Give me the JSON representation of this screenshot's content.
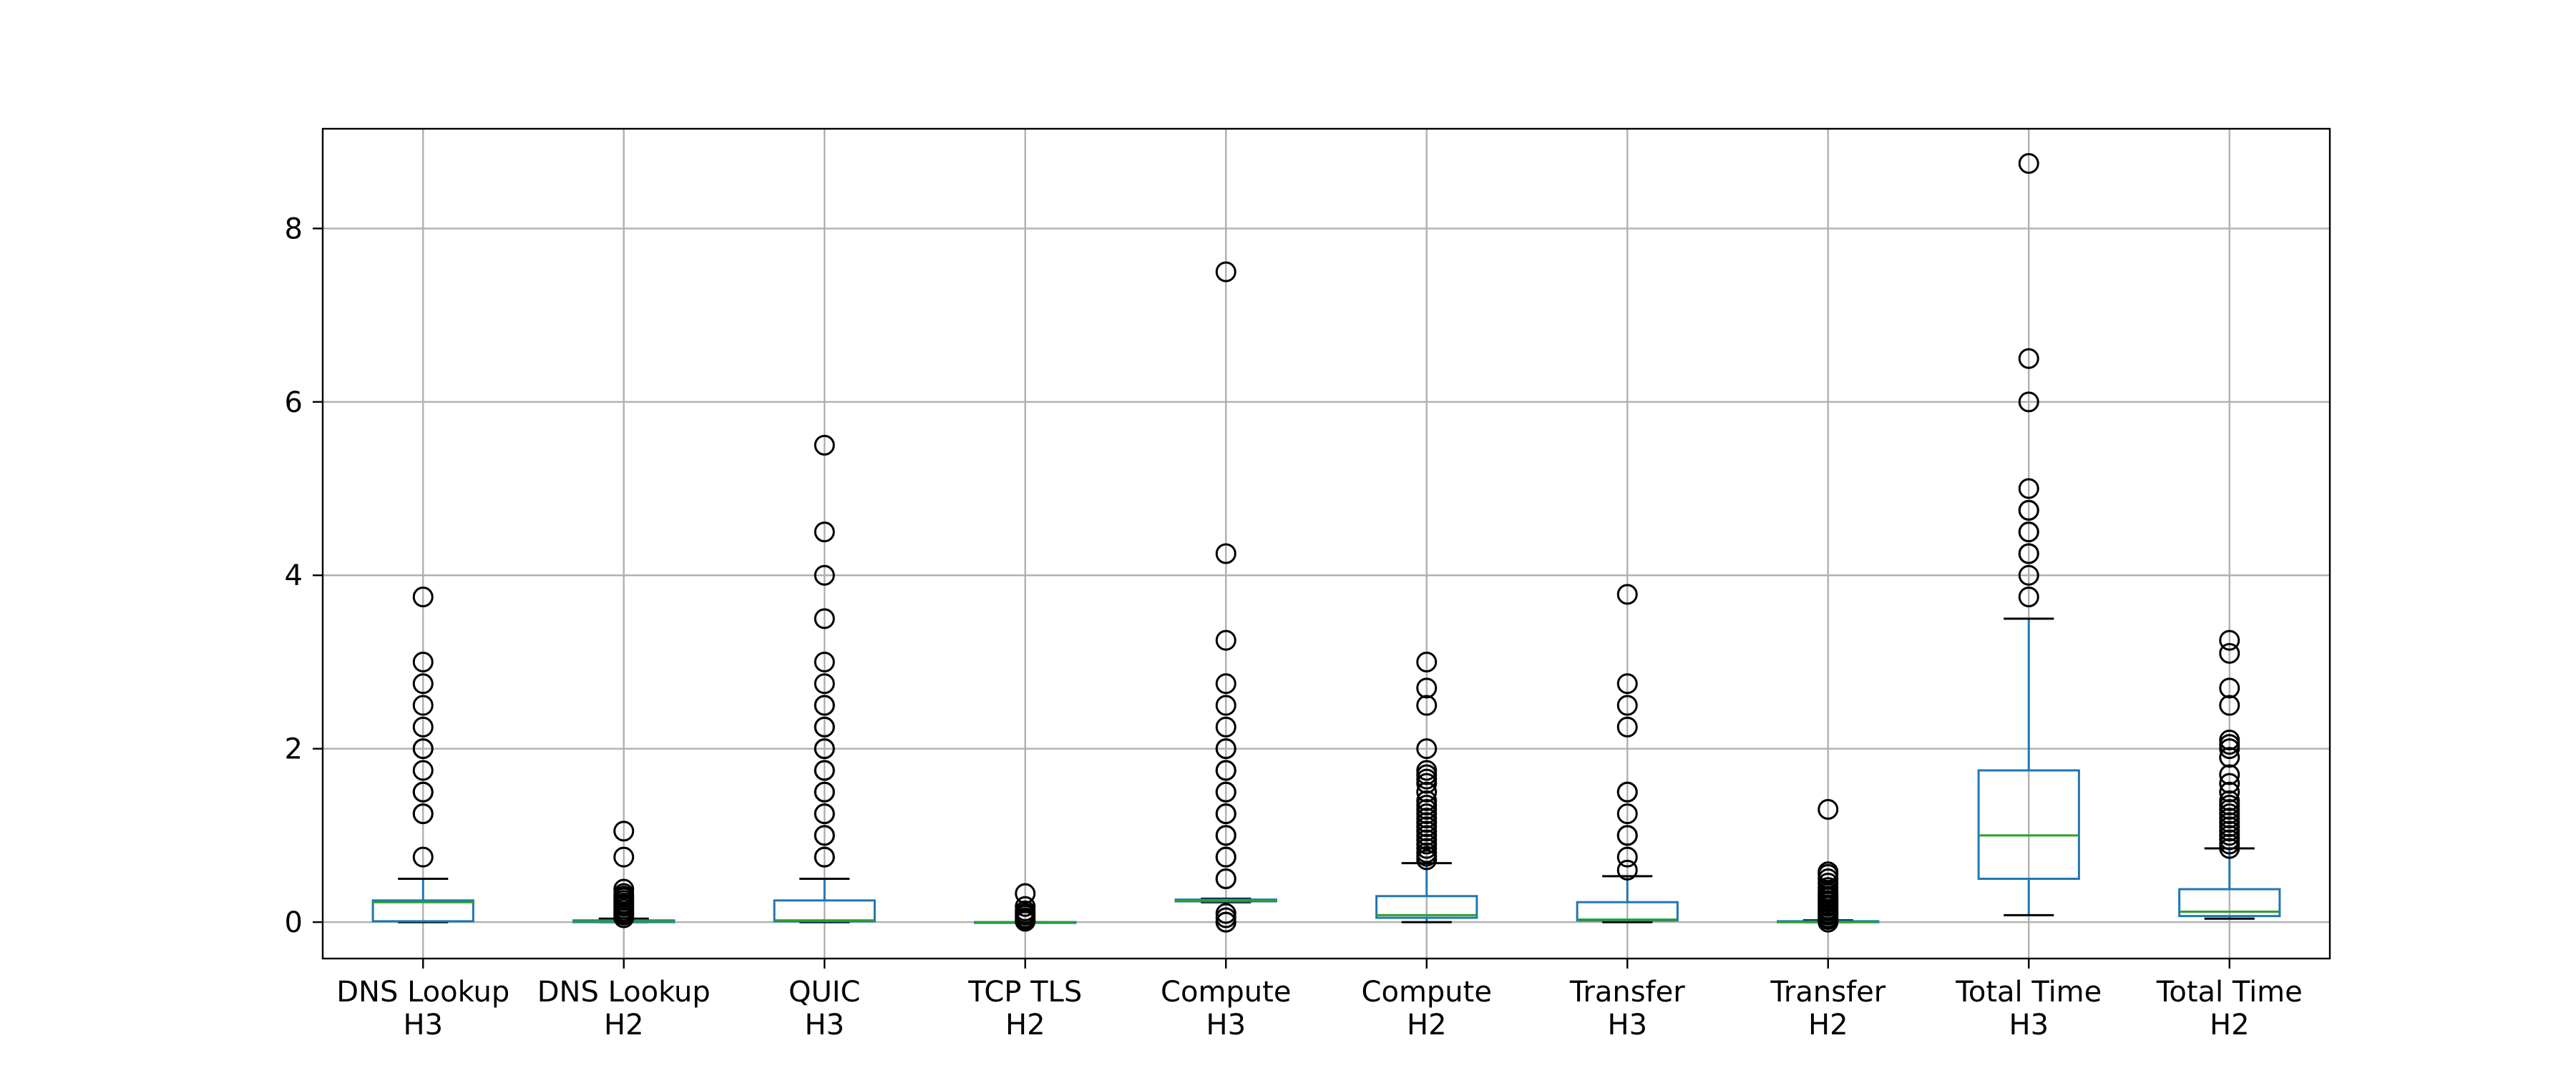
{
  "chart_data": {
    "type": "box",
    "title": "",
    "xlabel": "",
    "ylabel": "",
    "ylim": [
      -0.42,
      9.15
    ],
    "yticks": [
      0,
      2,
      4,
      6,
      8
    ],
    "grid": true,
    "colors": {
      "box": "#1f77b4",
      "median": "#2ca02c",
      "cap": "#000000",
      "flier": "#000000",
      "grid": "#b0b0b0"
    },
    "series": [
      {
        "label": [
          "DNS Lookup",
          "H3"
        ],
        "whislo": 0.0,
        "q1": 0.01,
        "med": 0.23,
        "q3": 0.25,
        "whishi": 0.5,
        "fliers": [
          0.75,
          1.25,
          1.25,
          1.5,
          1.5,
          1.75,
          2.0,
          2.0,
          2.25,
          2.5,
          2.75,
          3.0,
          3.75
        ]
      },
      {
        "label": [
          "DNS Lookup",
          "H2"
        ],
        "whislo": 0.0,
        "q1": 0.0,
        "med": 0.01,
        "q3": 0.02,
        "whishi": 0.04,
        "fliers": [
          0.05,
          0.08,
          0.1,
          0.12,
          0.15,
          0.18,
          0.2,
          0.22,
          0.25,
          0.28,
          0.3,
          0.33,
          0.38,
          0.75,
          1.05
        ]
      },
      {
        "label": [
          "QUIC",
          "H3"
        ],
        "whislo": 0.0,
        "q1": 0.01,
        "med": 0.02,
        "q3": 0.25,
        "whishi": 0.5,
        "fliers": [
          0.75,
          0.75,
          1.0,
          1.0,
          1.25,
          1.25,
          1.5,
          1.5,
          1.75,
          1.75,
          2.0,
          2.0,
          2.25,
          2.25,
          2.5,
          2.5,
          2.75,
          3.0,
          3.5,
          4.0,
          4.5,
          5.5
        ]
      },
      {
        "label": [
          "TCP TLS",
          "H2"
        ],
        "whislo": 0.0,
        "q1": 0.0,
        "med": 0.0,
        "q3": 0.0,
        "whishi": 0.0,
        "fliers": [
          0.01,
          0.03,
          0.05,
          0.08,
          0.1,
          0.13,
          0.18,
          0.33
        ]
      },
      {
        "label": [
          "Compute",
          "H3"
        ],
        "whislo": 0.23,
        "q1": 0.24,
        "med": 0.25,
        "q3": 0.26,
        "whishi": 0.27,
        "fliers": [
          0.0,
          0.0,
          0.05,
          0.1,
          0.5,
          0.5,
          0.75,
          0.75,
          1.0,
          1.0,
          1.25,
          1.25,
          1.5,
          1.5,
          1.75,
          1.75,
          2.0,
          2.0,
          2.25,
          2.5,
          2.75,
          3.25,
          4.25,
          7.5
        ]
      },
      {
        "label": [
          "Compute",
          "H2"
        ],
        "whislo": 0.0,
        "q1": 0.05,
        "med": 0.08,
        "q3": 0.3,
        "whishi": 0.68,
        "fliers": [
          0.72,
          0.76,
          0.8,
          0.85,
          0.9,
          0.95,
          1.0,
          1.05,
          1.1,
          1.15,
          1.2,
          1.25,
          1.3,
          1.35,
          1.4,
          1.5,
          1.6,
          1.65,
          1.7,
          1.75,
          2.0,
          2.5,
          2.7,
          3.0
        ]
      },
      {
        "label": [
          "Transfer",
          "H3"
        ],
        "whislo": 0.0,
        "q1": 0.02,
        "med": 0.03,
        "q3": 0.23,
        "whishi": 0.53,
        "fliers": [
          0.6,
          0.75,
          1.0,
          1.0,
          1.25,
          1.5,
          1.5,
          2.25,
          2.5,
          2.75,
          3.78
        ]
      },
      {
        "label": [
          "Transfer",
          "H2"
        ],
        "whislo": 0.0,
        "q1": 0.0,
        "med": 0.0,
        "q3": 0.01,
        "whishi": 0.02,
        "fliers": [
          0.0,
          0.03,
          0.05,
          0.08,
          0.1,
          0.13,
          0.15,
          0.18,
          0.2,
          0.23,
          0.25,
          0.28,
          0.3,
          0.33,
          0.36,
          0.4,
          0.45,
          0.5,
          0.55,
          0.58,
          1.3
        ]
      },
      {
        "label": [
          "Total Time",
          "H3"
        ],
        "whislo": 0.08,
        "q1": 0.5,
        "med": 1.0,
        "q3": 1.75,
        "whishi": 3.5,
        "fliers": [
          3.75,
          4.0,
          4.25,
          4.25,
          4.5,
          4.5,
          4.75,
          4.75,
          5.0,
          6.0,
          6.5,
          8.75
        ]
      },
      {
        "label": [
          "Total Time",
          "H2"
        ],
        "whislo": 0.04,
        "q1": 0.07,
        "med": 0.12,
        "q3": 0.38,
        "whishi": 0.85,
        "fliers": [
          0.85,
          0.9,
          0.95,
          1.0,
          1.05,
          1.1,
          1.15,
          1.2,
          1.25,
          1.3,
          1.35,
          1.4,
          1.5,
          1.6,
          1.7,
          1.9,
          2.0,
          2.05,
          2.1,
          2.5,
          2.7,
          3.1,
          3.25
        ]
      }
    ]
  }
}
